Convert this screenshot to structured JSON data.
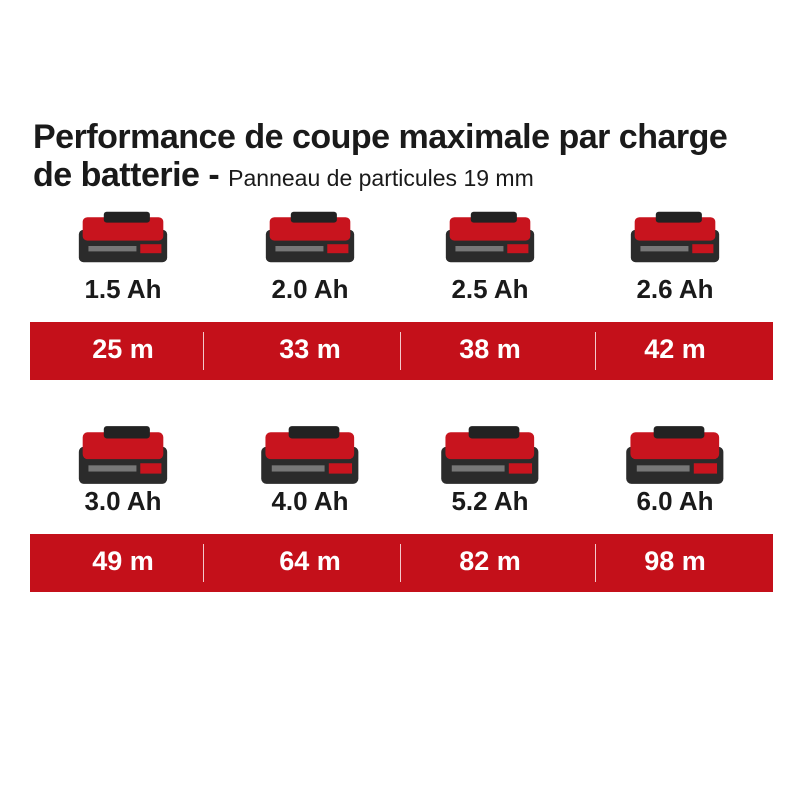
{
  "header": {
    "title": "Performance de coupe maximale par charge de batterie -",
    "subtitle": "Panneau de particules 19 mm"
  },
  "rows": [
    {
      "batteries": [
        {
          "capacity": "1.5 Ah",
          "distance": "25 m"
        },
        {
          "capacity": "2.0 Ah",
          "distance": "33 m"
        },
        {
          "capacity": "2.5 Ah",
          "distance": "38 m"
        },
        {
          "capacity": "2.6 Ah",
          "distance": "42 m"
        }
      ]
    },
    {
      "batteries": [
        {
          "capacity": "3.0 Ah",
          "distance": "49 m"
        },
        {
          "capacity": "4.0 Ah",
          "distance": "64 m"
        },
        {
          "capacity": "5.2 Ah",
          "distance": "82 m"
        },
        {
          "capacity": "6.0 Ah",
          "distance": "98 m"
        }
      ]
    }
  ]
}
